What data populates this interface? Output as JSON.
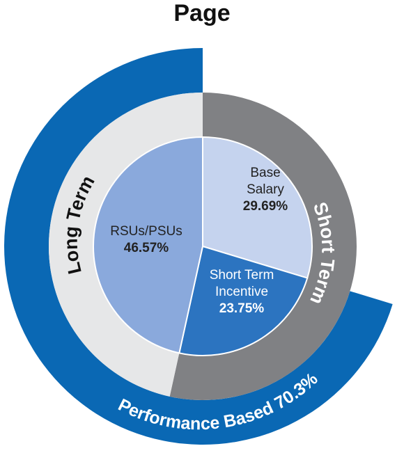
{
  "chart_data": {
    "type": "pie",
    "title": "Page",
    "slices": [
      {
        "label_lines": [
          "Base",
          "Salary"
        ],
        "value": 29.69,
        "value_label": "29.69%",
        "color": "#c5d3ee",
        "text_color": "#222222"
      },
      {
        "label_lines": [
          "Short Term",
          "Incentive"
        ],
        "value": 23.75,
        "value_label": "23.75%",
        "color": "#2c74c0",
        "text_color": "#ffffff"
      },
      {
        "label_lines": [
          "RSUs/PSUs"
        ],
        "value": 46.57,
        "value_label": "46.57%",
        "color": "#8aa9dc",
        "text_color": "#222222"
      }
    ],
    "rings": [
      {
        "label": "Short Term",
        "value": 53.44,
        "color": "#808184",
        "text_color": "#ffffff"
      },
      {
        "label": "Long Term",
        "value": 46.57,
        "color": "#e6e7e8",
        "text_color": "#111111"
      }
    ],
    "outer_arc": {
      "label": "Performance Based 70.3%",
      "value": 70.3,
      "color": "#0a68b4",
      "text_color": "#ffffff"
    }
  }
}
